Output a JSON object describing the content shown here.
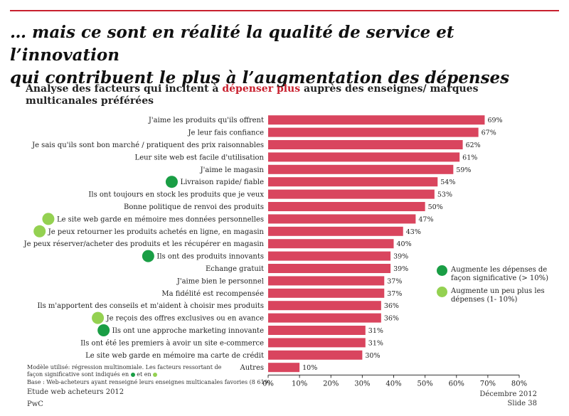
{
  "title_line1": "… mais ce sont en réalité la qualité de service et l’innovation",
  "title_line2": "qui contribuent le plus à l’augmentation des dépenses",
  "subtitle": {
    "before": "Analyse des facteurs qui incitent à ",
    "highlight": "dépenser plus",
    "after": " auprès des enseignes/ marques multicanales préférées"
  },
  "colors": {
    "bar": "#d9455e",
    "accent": "#c8202e",
    "dark_green": "#1a9e45",
    "light_green": "#94d151"
  },
  "chart_data": {
    "type": "bar",
    "orientation": "horizontal",
    "categories": [
      "J'aime les produits qu'ils offrent",
      "Je leur fais confiance",
      "Je sais qu'ils sont bon marché / pratiquent des prix raisonnables",
      "Leur site web est facile d'utilisation",
      "J'aime le magasin",
      "Livraison rapide/ fiable",
      "Ils ont toujours en stock les produits que je veux",
      "Bonne politique de renvoi des produits",
      "Le site web garde en mémoire mes données personnelles",
      "Je peux retourner les produits achetés en ligne, en magasin",
      "Je peux réserver/acheter des produits et les récupérer en magasin",
      "Ils ont des produits innovants",
      "Echange gratuit",
      "J'aime bien le personnel",
      "Ma fidélité est recompensée",
      "Ils m'apportent des conseils et m'aident à choisir mes produits",
      "Je reçois des offres exclusives ou en avance",
      "Ils ont une approche marketing innovante",
      "Ils ont été les premiers à avoir un site e-commerce",
      "Le site web garde en mémoire ma carte de crédit",
      "Autres"
    ],
    "values": [
      69,
      67,
      62,
      61,
      59,
      54,
      53,
      50,
      47,
      43,
      40,
      39,
      39,
      37,
      37,
      36,
      36,
      31,
      31,
      30,
      10
    ],
    "value_labels": [
      "69%",
      "67%",
      "62%",
      "61%",
      "59%",
      "54%",
      "53%",
      "50%",
      "47%",
      "43%",
      "40%",
      "39%",
      "39%",
      "37%",
      "37%",
      "36%",
      "36%",
      "31%",
      "31%",
      "30%",
      "10%"
    ],
    "markers": [
      "",
      "",
      "",
      "",
      "",
      "dark",
      "",
      "",
      "light",
      "light",
      "",
      "dark",
      "",
      "",
      "",
      "",
      "light",
      "dark",
      "",
      "",
      ""
    ],
    "xlim": [
      0,
      80
    ],
    "xticks": [
      "0%",
      "10%",
      "20%",
      "30%",
      "40%",
      "50%",
      "60%",
      "70%",
      "80%"
    ],
    "grid": false
  },
  "legend": {
    "dark": "Augmente les dépenses de façon significative (> 10%)",
    "light": "Augmente un peu plus les dépenses (1- 10%)"
  },
  "notes": {
    "line1": "Modèle utilisé: régression multinomiale. Les facteurs ressortant de",
    "line2_before": "façon significative sont indiqués en",
    "line2_mid": "et en",
    "line3": "Base : Web-acheteurs ayant renseigné leurs enseignes multicanales favories (8 619)"
  },
  "footer": {
    "study": "Etude web acheteurs 2012",
    "company": "PwC",
    "date": "Décembre 2012",
    "slide": "Slide 38"
  }
}
